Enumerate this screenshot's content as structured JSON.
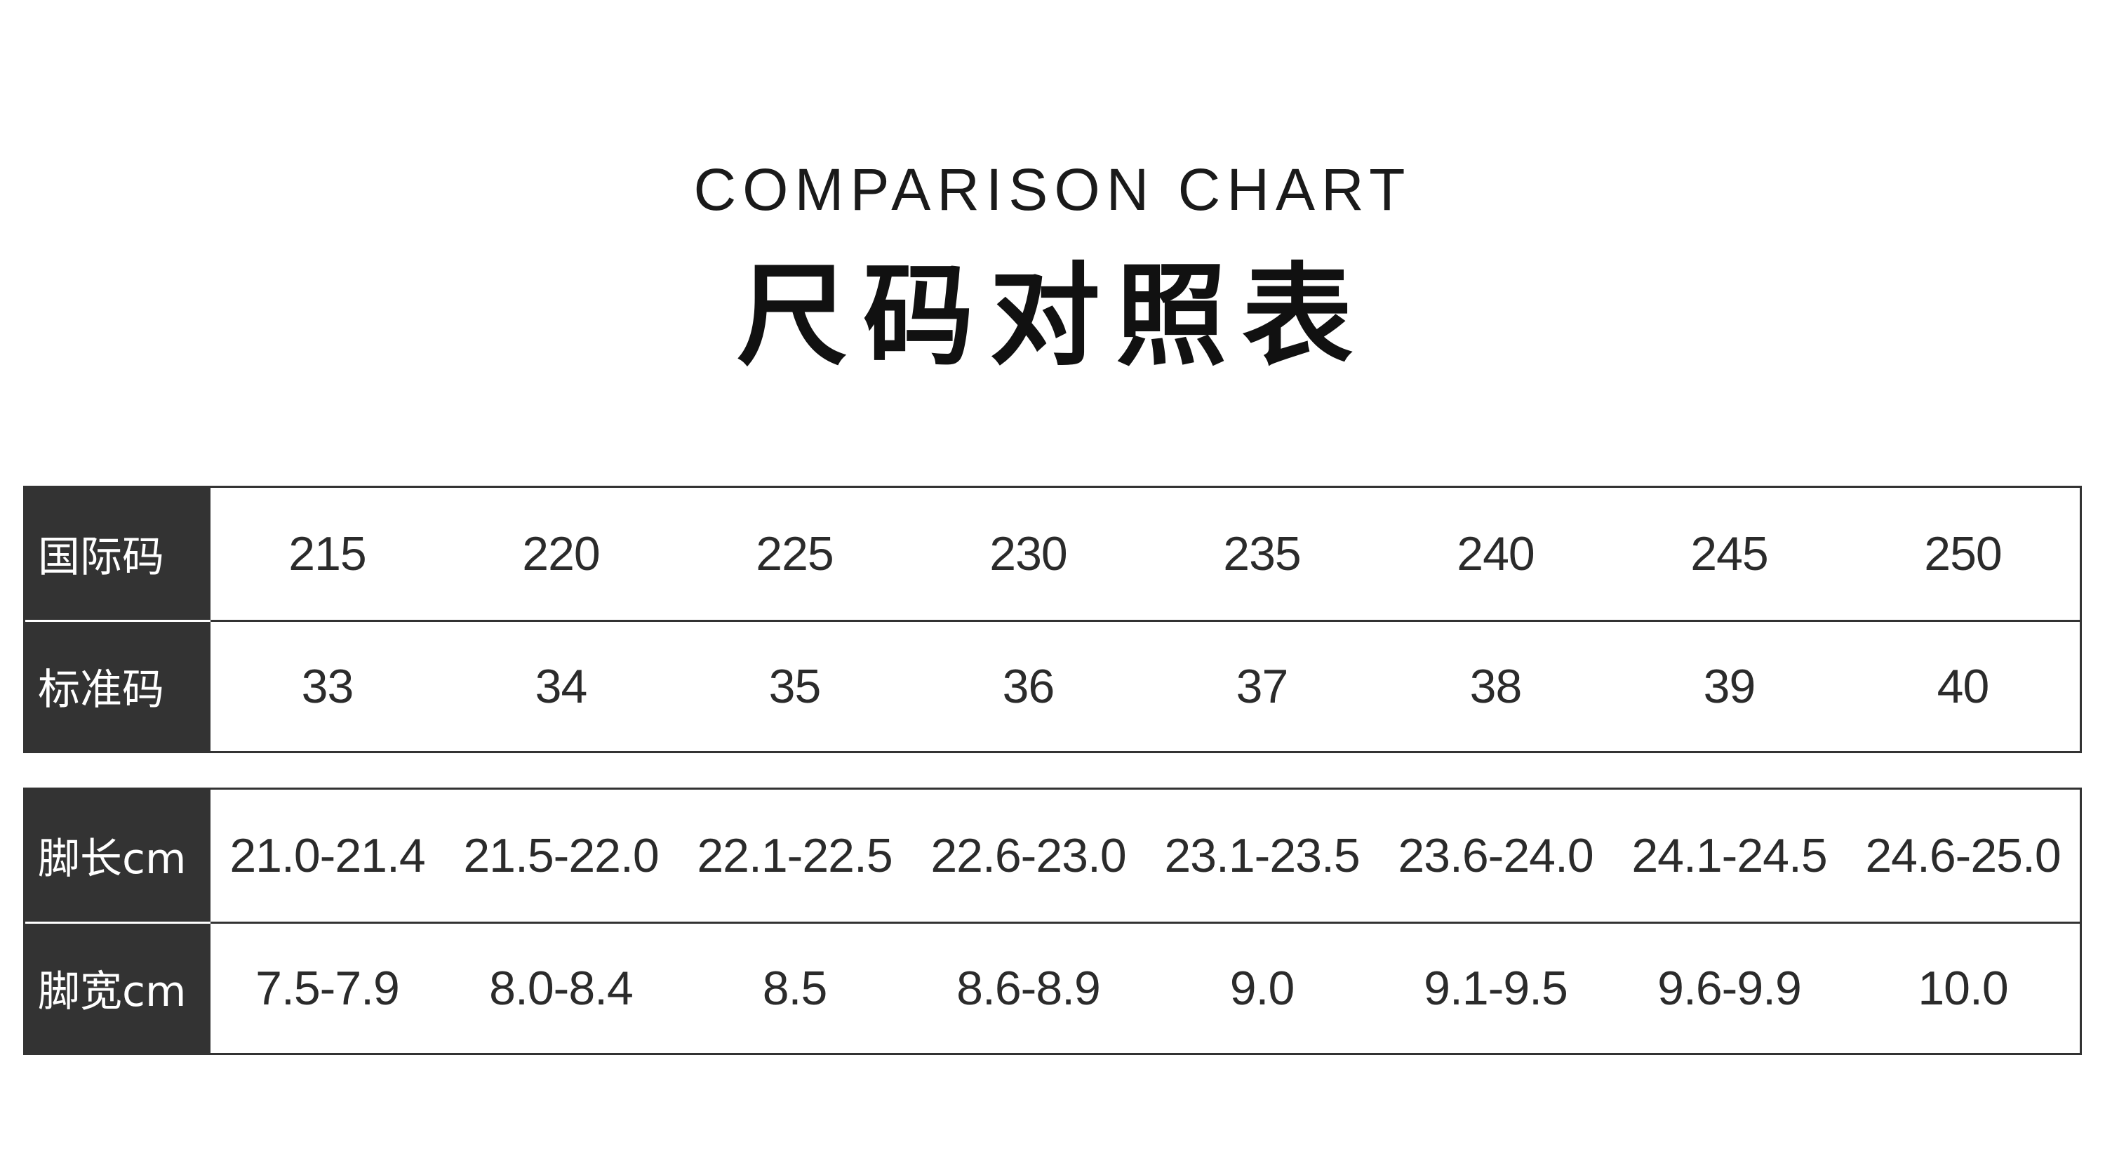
{
  "header": {
    "subtitle": "COMPARISON CHART",
    "title": "尺码对照表"
  },
  "colors": {
    "label_bg": "#333333",
    "label_text": "#ffffff",
    "border": "#333333"
  },
  "table1": {
    "rows": [
      {
        "label": "国际码",
        "values": [
          "215",
          "220",
          "225",
          "230",
          "235",
          "240",
          "245",
          "250"
        ]
      },
      {
        "label": "标准码",
        "values": [
          "33",
          "34",
          "35",
          "36",
          "37",
          "38",
          "39",
          "40"
        ]
      }
    ]
  },
  "table2": {
    "rows": [
      {
        "label": "脚长cm",
        "values": [
          "21.0-21.4",
          "21.5-22.0",
          "22.1-22.5",
          "22.6-23.0",
          "23.1-23.5",
          "23.6-24.0",
          "24.1-24.5",
          "24.6-25.0"
        ]
      },
      {
        "label": "脚宽cm",
        "values": [
          "7.5-7.9",
          "8.0-8.4",
          "8.5",
          "8.6-8.9",
          "9.0",
          "9.1-9.5",
          "9.6-9.9",
          "10.0"
        ]
      }
    ]
  }
}
